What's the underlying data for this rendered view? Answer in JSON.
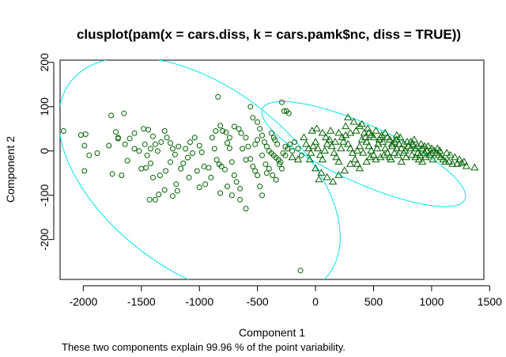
{
  "chart_data": {
    "type": "scatter",
    "title": "clusplot(pam(x = cars.diss, k = cars.pamk$nc, diss = TRUE))",
    "xlabel": "Component 1",
    "ylabel": "Component 2",
    "caption": "These two components explain 99.96 % of the point variability.",
    "xlim": [
      -2200,
      1450
    ],
    "ylim": [
      -290,
      205
    ],
    "x_ticks": [
      -2000,
      -1500,
      -1000,
      -500,
      0,
      500,
      1000,
      1500
    ],
    "y_ticks": [
      -200,
      -100,
      0,
      100,
      200
    ],
    "grid": false,
    "legend": "none",
    "colors": {
      "points": "#006400",
      "ellipse": "#00e5ee",
      "axes": "#000000"
    },
    "clusters": [
      {
        "marker": "circle",
        "ellipse": {
          "center": [
            -1000,
            -62
          ],
          "semi_axes": [
            1220,
            238
          ],
          "angle_deg": -6.5
        },
        "points": [
          [
            -2170,
            45
          ],
          [
            -1980,
            38
          ],
          [
            -2020,
            36
          ],
          [
            -1990,
            12
          ],
          [
            -1950,
            -10
          ],
          [
            -1990,
            -45
          ],
          [
            -1880,
            -5
          ],
          [
            -1760,
            80
          ],
          [
            -1720,
            43
          ],
          [
            -1700,
            30
          ],
          [
            -1650,
            85
          ],
          [
            -1780,
            12
          ],
          [
            -1750,
            -52
          ],
          [
            -1670,
            -55
          ],
          [
            -1640,
            15
          ],
          [
            -1600,
            28
          ],
          [
            -1560,
            5
          ],
          [
            -1620,
            -22
          ],
          [
            -1700,
            28
          ],
          [
            -1480,
            50
          ],
          [
            -1440,
            48
          ],
          [
            -1400,
            33
          ],
          [
            -1380,
            15
          ],
          [
            -1360,
            0
          ],
          [
            -1450,
            -10
          ],
          [
            -1420,
            -28
          ],
          [
            -1460,
            -38
          ],
          [
            -1500,
            -40
          ],
          [
            -1400,
            -60
          ],
          [
            -1340,
            -55
          ],
          [
            -1300,
            45
          ],
          [
            -1280,
            30
          ],
          [
            -1250,
            18
          ],
          [
            -1230,
            5
          ],
          [
            -1210,
            -8
          ],
          [
            -1250,
            -25
          ],
          [
            -1290,
            -45
          ],
          [
            -1200,
            -75
          ],
          [
            -1160,
            -40
          ],
          [
            -1140,
            -28
          ],
          [
            -1100,
            -15
          ],
          [
            -1080,
            20
          ],
          [
            -1040,
            30
          ],
          [
            -1000,
            12
          ],
          [
            -980,
            -3
          ],
          [
            -960,
            -35
          ],
          [
            -920,
            -38
          ],
          [
            -1020,
            -45
          ],
          [
            -1300,
            -88
          ],
          [
            -1350,
            -98
          ],
          [
            -1380,
            -110
          ],
          [
            -1430,
            -110
          ],
          [
            -1230,
            -102
          ],
          [
            -1190,
            -90
          ],
          [
            -1470,
            15
          ],
          [
            -1520,
            0
          ],
          [
            -1560,
            40
          ],
          [
            -1420,
            5
          ],
          [
            -1330,
            20
          ],
          [
            -1180,
            10
          ],
          [
            -890,
            30
          ],
          [
            -870,
            5
          ],
          [
            -850,
            -20
          ],
          [
            -830,
            -30
          ],
          [
            -810,
            -35
          ],
          [
            -780,
            -42
          ],
          [
            -760,
            18
          ],
          [
            -740,
            6
          ],
          [
            -720,
            -25
          ],
          [
            -700,
            -55
          ],
          [
            -680,
            -70
          ],
          [
            -650,
            -85
          ],
          [
            -840,
            122
          ],
          [
            -820,
            57
          ],
          [
            -800,
            45
          ],
          [
            -770,
            42
          ],
          [
            -740,
            30
          ],
          [
            -700,
            55
          ],
          [
            -660,
            50
          ],
          [
            -640,
            40
          ],
          [
            -600,
            30
          ],
          [
            -580,
            10
          ],
          [
            -560,
            -18
          ],
          [
            -540,
            -35
          ],
          [
            -520,
            -45
          ],
          [
            -500,
            -55
          ],
          [
            -480,
            -80
          ],
          [
            -460,
            -100
          ],
          [
            -600,
            -130
          ],
          [
            -650,
            -110
          ],
          [
            -900,
            -60
          ],
          [
            -950,
            -75
          ],
          [
            -1000,
            -82
          ],
          [
            -820,
            -95
          ],
          [
            -760,
            -80
          ],
          [
            -720,
            -100
          ],
          [
            -560,
            100
          ],
          [
            -540,
            75
          ],
          [
            -500,
            65
          ],
          [
            -480,
            50
          ],
          [
            -460,
            35
          ],
          [
            -440,
            20
          ],
          [
            -420,
            10
          ],
          [
            -400,
            0
          ],
          [
            -380,
            -5
          ],
          [
            -360,
            -10
          ],
          [
            -340,
            -15
          ],
          [
            -320,
            -20
          ],
          [
            -300,
            -25
          ],
          [
            -280,
            -5
          ],
          [
            -260,
            10
          ],
          [
            -240,
            5
          ],
          [
            -220,
            15
          ],
          [
            -200,
            0
          ],
          [
            -290,
            110
          ],
          [
            -270,
            90
          ],
          [
            -250,
            90
          ],
          [
            -230,
            85
          ],
          [
            -380,
            40
          ],
          [
            -360,
            30
          ],
          [
            -500,
            25
          ],
          [
            -520,
            15
          ],
          [
            -460,
            -10
          ],
          [
            -430,
            -30
          ],
          [
            -400,
            -40
          ],
          [
            -370,
            -55
          ],
          [
            -340,
            -65
          ],
          [
            -310,
            -30
          ],
          [
            -290,
            -40
          ],
          [
            -260,
            -10
          ],
          [
            -350,
            25
          ],
          [
            -330,
            15
          ],
          [
            -130,
            -270
          ],
          [
            -1090,
            -60
          ],
          [
            -1060,
            -5
          ],
          [
            -1120,
            5
          ],
          [
            -860,
            45
          ],
          [
            -600,
            -20
          ],
          [
            -630,
            5
          ],
          [
            -420,
            -50
          ],
          [
            -180,
            20
          ],
          [
            -150,
            5
          ],
          [
            -120,
            -10
          ]
        ]
      },
      {
        "marker": "triangle",
        "ellipse": {
          "center": [
            415,
            -7
          ],
          "semi_axes": [
            883,
            71
          ],
          "angle_deg": -6.2
        },
        "points": [
          [
            -100,
            30
          ],
          [
            -80,
            15
          ],
          [
            -60,
            5
          ],
          [
            -40,
            -5
          ],
          [
            -20,
            10
          ],
          [
            0,
            20
          ],
          [
            20,
            5
          ],
          [
            40,
            -10
          ],
          [
            60,
            -20
          ],
          [
            80,
            0
          ],
          [
            100,
            15
          ],
          [
            120,
            25
          ],
          [
            140,
            10
          ],
          [
            160,
            -5
          ],
          [
            180,
            -15
          ],
          [
            200,
            -25
          ],
          [
            220,
            5
          ],
          [
            240,
            20
          ],
          [
            260,
            35
          ],
          [
            280,
            15
          ],
          [
            300,
            5
          ],
          [
            320,
            -5
          ],
          [
            340,
            -20
          ],
          [
            360,
            -30
          ],
          [
            380,
            10
          ],
          [
            400,
            25
          ],
          [
            420,
            40
          ],
          [
            440,
            20
          ],
          [
            460,
            10
          ],
          [
            480,
            0
          ],
          [
            500,
            -10
          ],
          [
            520,
            -20
          ],
          [
            540,
            15
          ],
          [
            560,
            30
          ],
          [
            580,
            20
          ],
          [
            600,
            5
          ],
          [
            620,
            -5
          ],
          [
            640,
            -15
          ],
          [
            660,
            10
          ],
          [
            680,
            20
          ],
          [
            700,
            25
          ],
          [
            720,
            15
          ],
          [
            740,
            5
          ],
          [
            760,
            -5
          ],
          [
            780,
            -15
          ],
          [
            800,
            10
          ],
          [
            820,
            20
          ],
          [
            840,
            15
          ],
          [
            860,
            5
          ],
          [
            880,
            -5
          ],
          [
            900,
            -10
          ],
          [
            920,
            5
          ],
          [
            940,
            10
          ],
          [
            960,
            0
          ],
          [
            980,
            -10
          ],
          [
            1000,
            -5
          ],
          [
            1020,
            0
          ],
          [
            1040,
            -5
          ],
          [
            1060,
            -10
          ],
          [
            1080,
            -15
          ],
          [
            1100,
            -20
          ],
          [
            1120,
            -25
          ],
          [
            1150,
            -25
          ],
          [
            1180,
            -30
          ],
          [
            1220,
            -30
          ],
          [
            1260,
            -28
          ],
          [
            1300,
            -35
          ],
          [
            1370,
            -38
          ],
          [
            0,
            -40
          ],
          [
            50,
            -50
          ],
          [
            100,
            -60
          ],
          [
            200,
            -55
          ],
          [
            250,
            -45
          ],
          [
            150,
            -70
          ],
          [
            30,
            -65
          ],
          [
            -50,
            -20
          ],
          [
            -150,
            -20
          ],
          [
            -200,
            -15
          ],
          [
            280,
            75
          ],
          [
            380,
            55
          ],
          [
            450,
            50
          ],
          [
            520,
            45
          ],
          [
            600,
            40
          ],
          [
            700,
            35
          ],
          [
            330,
            65
          ],
          [
            430,
            30
          ],
          [
            480,
            35
          ],
          [
            550,
            25
          ],
          [
            620,
            30
          ],
          [
            660,
            15
          ],
          [
            730,
            30
          ],
          [
            790,
            20
          ],
          [
            850,
            25
          ],
          [
            910,
            15
          ],
          [
            970,
            10
          ],
          [
            1050,
            5
          ],
          [
            360,
            0
          ],
          [
            410,
            -5
          ],
          [
            470,
            -15
          ],
          [
            530,
            5
          ],
          [
            590,
            -10
          ],
          [
            650,
            -20
          ],
          [
            710,
            -10
          ],
          [
            770,
            0
          ],
          [
            830,
            -10
          ],
          [
            890,
            -20
          ],
          [
            950,
            -15
          ],
          [
            1010,
            -20
          ],
          [
            1070,
            0
          ],
          [
            1130,
            -5
          ],
          [
            300,
            40
          ],
          [
            260,
            55
          ],
          [
            350,
            45
          ],
          [
            400,
            60
          ],
          [
            460,
            40
          ],
          [
            500,
            30
          ],
          [
            570,
            35
          ],
          [
            640,
            25
          ],
          [
            700,
            5
          ],
          [
            760,
            15
          ],
          [
            820,
            5
          ],
          [
            880,
            10
          ],
          [
            940,
            -5
          ],
          [
            1000,
            5
          ],
          [
            200,
            40
          ],
          [
            230,
            30
          ],
          [
            170,
            20
          ],
          [
            130,
            45
          ],
          [
            90,
            30
          ],
          [
            60,
            40
          ],
          [
            10,
            50
          ],
          [
            -30,
            45
          ],
          [
            380,
            -40
          ],
          [
            300,
            -30
          ],
          [
            440,
            -25
          ],
          [
            560,
            -15
          ],
          [
            680,
            -5
          ],
          [
            740,
            -25
          ],
          [
            860,
            -15
          ],
          [
            920,
            -25
          ],
          [
            1160,
            -10
          ],
          [
            1200,
            -15
          ],
          [
            1240,
            -20
          ],
          [
            1280,
            -25
          ]
        ]
      }
    ]
  }
}
